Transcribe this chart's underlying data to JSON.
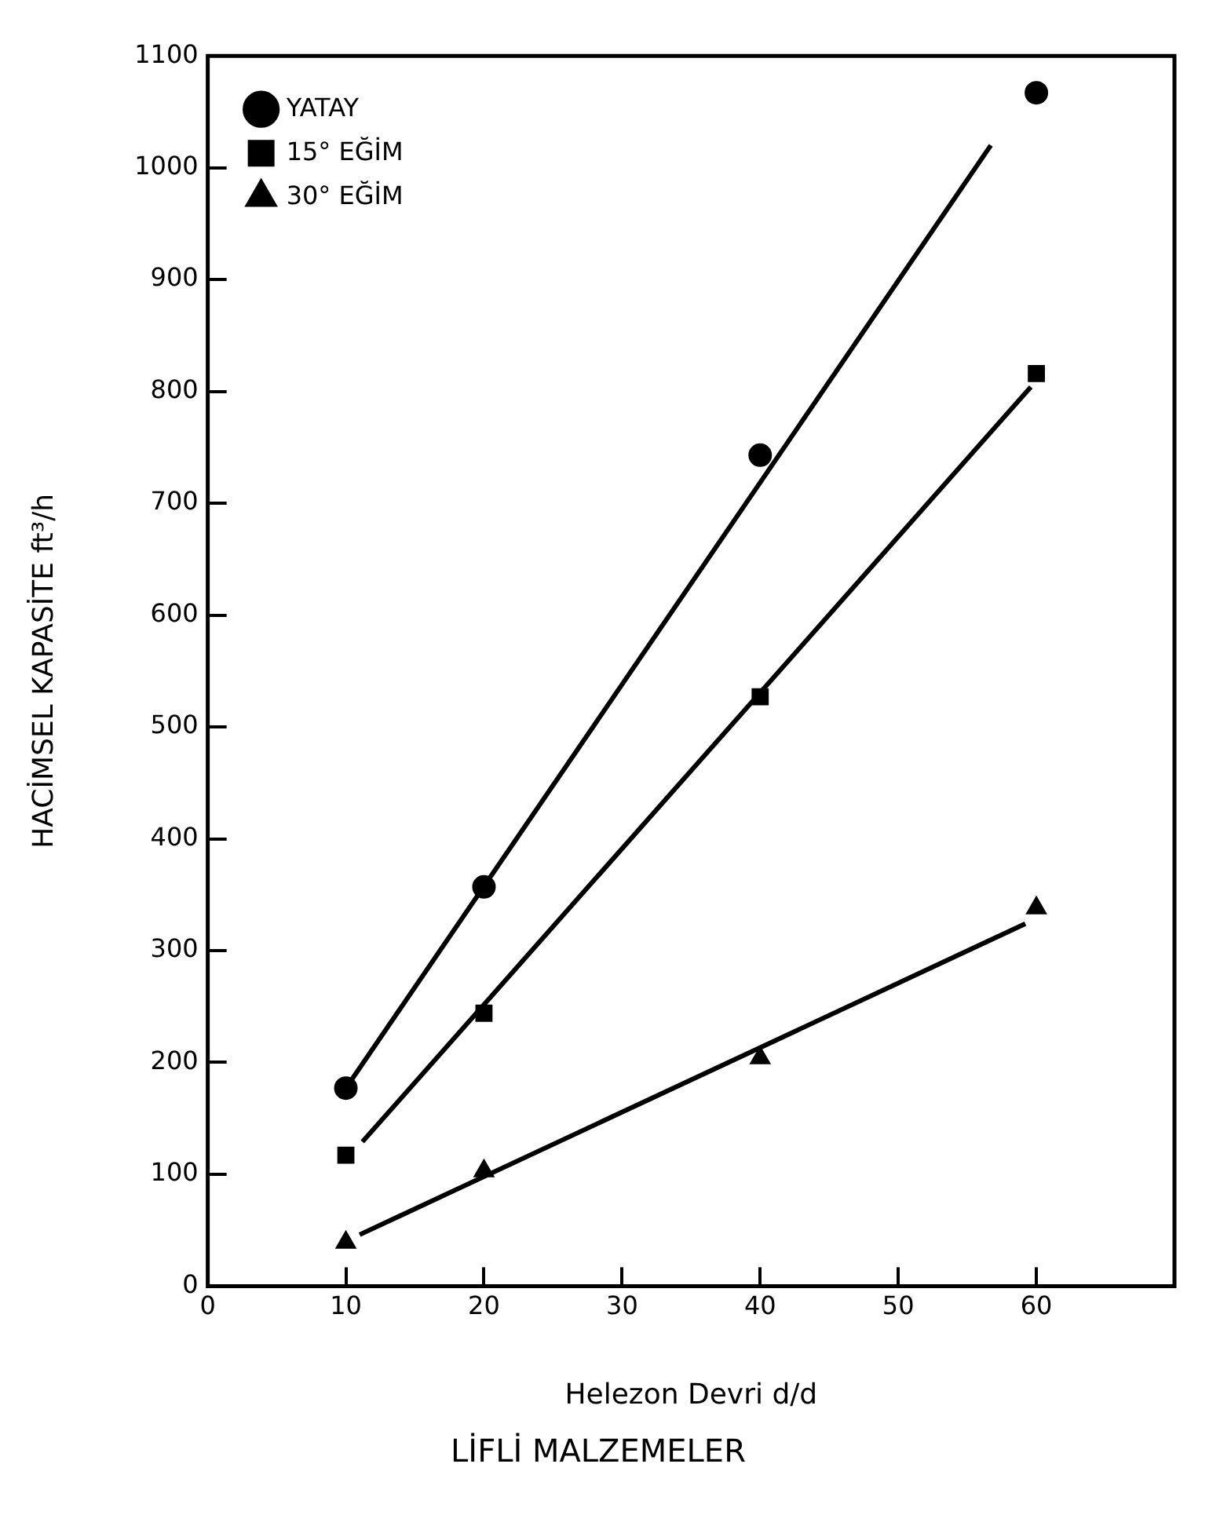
{
  "chart_data": {
    "type": "scatter",
    "title": "LİFLİ MALZEMELER",
    "xlabel": "Helezon Devri d/d",
    "ylabel": "HACİMSEL KAPASİTE ft³/h",
    "xlim": [
      0,
      70
    ],
    "xticks": [
      0,
      10,
      20,
      30,
      40,
      50,
      60
    ],
    "ylim": [
      0,
      1100
    ],
    "yticks": [
      0,
      100,
      200,
      300,
      400,
      500,
      600,
      700,
      800,
      900,
      1000,
      1100
    ],
    "grid": false,
    "legend": "top left",
    "series": [
      {
        "name": "YATAY",
        "type": "scatter",
        "marker": "circle",
        "color": "#000000",
        "x": [
          10,
          20,
          40,
          60
        ],
        "values": [
          177,
          357,
          743,
          1067
        ]
      },
      {
        "name": "15° EĞİM",
        "type": "scatter",
        "marker": "square",
        "color": "#000000",
        "x": [
          10,
          20,
          40,
          60
        ],
        "values": [
          117,
          244,
          527,
          816
        ]
      },
      {
        "name": "30° EĞİM",
        "type": "scatter",
        "marker": "triangle",
        "color": "#000000",
        "x": [
          10,
          20,
          40,
          60
        ],
        "values": [
          39,
          103,
          204,
          338
        ]
      },
      {
        "type": "line",
        "marker": "none",
        "color": "#000000",
        "x": [
          10,
          56.7
        ],
        "values": [
          177,
          1020
        ]
      },
      {
        "type": "line",
        "marker": "none",
        "color": "#000000",
        "x": [
          11.2,
          59.6
        ],
        "values": [
          129,
          804
        ]
      },
      {
        "type": "line",
        "marker": "none",
        "color": "#000000",
        "x": [
          11,
          59.2
        ],
        "values": [
          46,
          324
        ]
      }
    ]
  }
}
